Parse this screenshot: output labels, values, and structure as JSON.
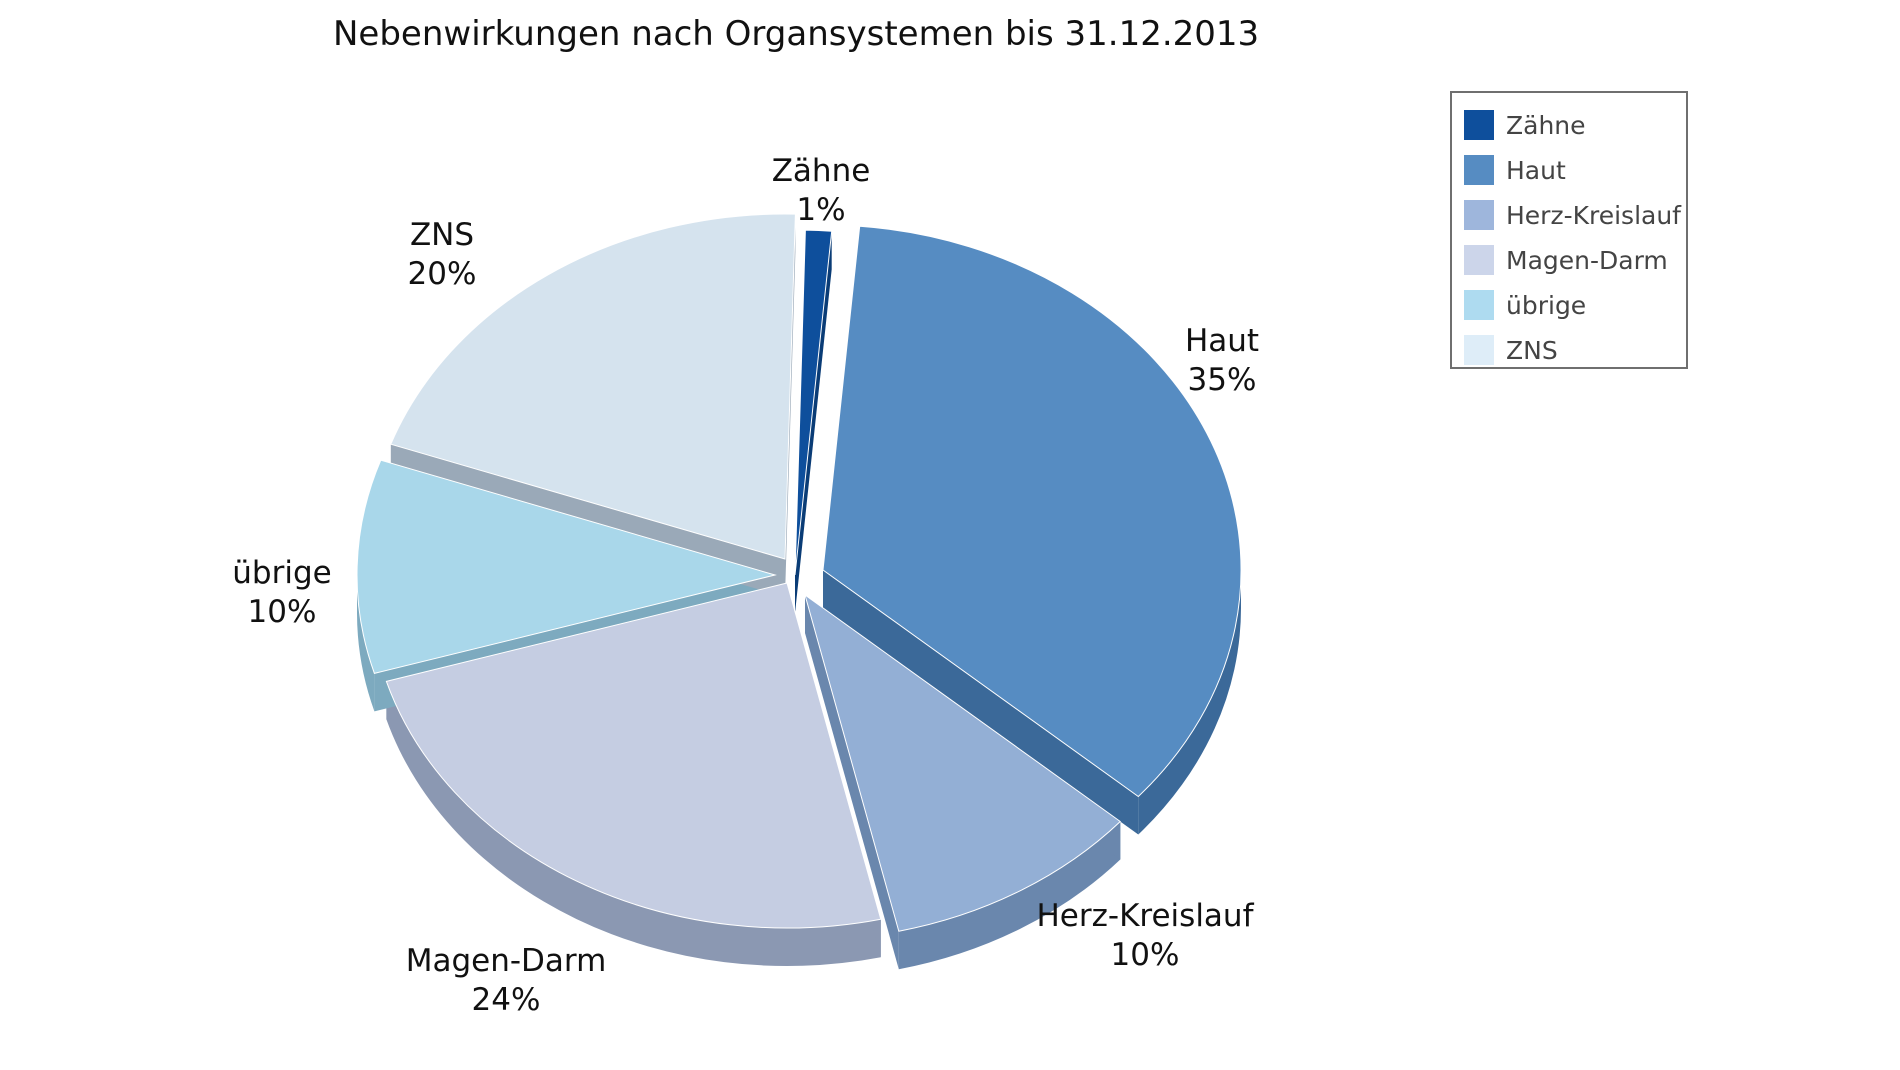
{
  "chart_data": {
    "type": "pie",
    "title": "Nebenwirkungen nach Organsystemen bis 31.12.2013",
    "categories": [
      "Zähne",
      "Haut",
      "Herz-Kreislauf",
      "Magen-Darm",
      "übrige",
      "ZNS"
    ],
    "values": [
      1,
      35,
      10,
      24,
      10,
      20
    ],
    "value_labels": [
      "1%",
      "35%",
      "10%",
      "24%",
      "10%",
      "20%"
    ],
    "legend_placement": "top-right",
    "style": "3d-exploded",
    "colors": {
      "Zähne": "#0e4f9c",
      "Haut": "#568cc2",
      "Herz-Kreislauf": "#93afd5",
      "Magen-Darm": "#c5cde2",
      "übrige": "#a9d7ea",
      "ZNS": "#d5e3ee"
    },
    "side_colors": {
      "Zähne": "#0a3c76",
      "Haut": "#3b6999",
      "Herz-Kreislauf": "#6a87ad",
      "Magen-Darm": "#8b98b2",
      "übrige": "#7daabf",
      "ZNS": "#9aa9b8"
    },
    "legend_colors": {
      "Zähne": "#0e4f9c",
      "Haut": "#568cc2",
      "Herz-Kreislauf": "#9eb6dc",
      "Magen-Darm": "#ccd5ea",
      "übrige": "#aedbf0",
      "ZNS": "#deedf8"
    }
  }
}
